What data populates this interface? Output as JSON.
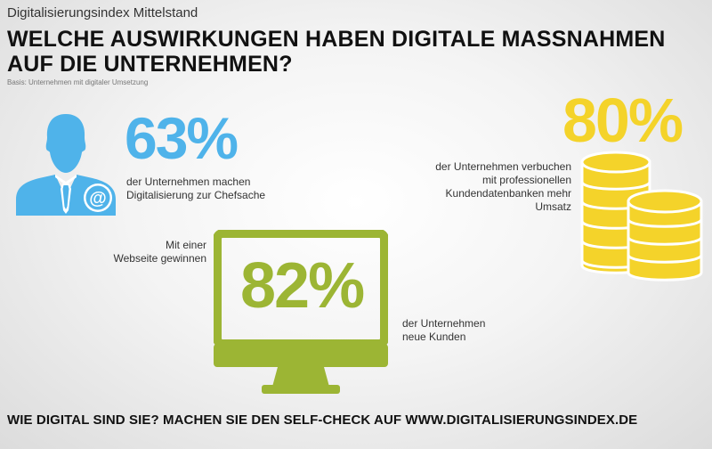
{
  "header": {
    "kicker": "Digitalisierungsindex Mittelstand",
    "title_line1": "WELCHE AUSWIRKUNGEN HABEN DIGITALE MASSNAHMEN",
    "title_line2": "AUF DIE UNTERNEHMEN?",
    "basis": "Basis: Unternehmen mit digitaler Umsetzung"
  },
  "stats": [
    {
      "value": "63%",
      "line1": "der Unternehmen machen",
      "line2": "Digitalisierung zur Chefsache",
      "icon": "businessman-icon",
      "color": "#4fb3ea"
    },
    {
      "value": "80%",
      "line1": "der Unternehmen verbuchen",
      "line2": "mit professionellen",
      "line3": "Kundendatenbanken mehr Umsatz",
      "icon": "coins-icon",
      "color": "#f4d32a"
    },
    {
      "value": "82%",
      "pre1": "Mit einer",
      "pre2": "Webseite gewinnen",
      "line1": "der Unternehmen",
      "line2": "neue Kunden",
      "icon": "monitor-icon",
      "color": "#9cb534"
    }
  ],
  "footer": {
    "text": "WIE DIGITAL SIND SIE? MACHEN SIE DEN SELF-CHECK AUF WWW.DIGITALISIERUNGSINDEX.DE"
  }
}
